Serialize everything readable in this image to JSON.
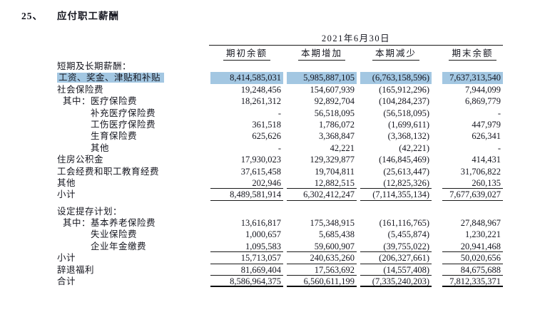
{
  "title": {
    "number": "25、",
    "text": "应付职工薪酬"
  },
  "colors": {
    "highlight": "#a3c7e2",
    "text": "#15161f",
    "rule": "#1a1a1a"
  },
  "table": {
    "date_header": "2021年6月30日",
    "columns": [
      "期初余额",
      "本期增加",
      "本期减少",
      "期末余额"
    ],
    "rows": [
      {
        "label": "短期及长期薪酬：",
        "indent": 0,
        "section": true,
        "values": [
          "",
          "",
          "",
          ""
        ]
      },
      {
        "label": "工资、奖金、津贴和补贴",
        "indent": 0,
        "highlight": true,
        "values": [
          "8,414,585,031",
          "5,985,887,105",
          "(6,763,158,596)",
          "7,637,313,540"
        ]
      },
      {
        "label": "社会保险费",
        "indent": 0,
        "values": [
          "19,248,456",
          "154,607,939",
          "(165,912,296)",
          "7,944,099"
        ]
      },
      {
        "label": "其中：医疗保险费",
        "indent": 1,
        "values": [
          "18,261,312",
          "92,892,704",
          "(104,284,237)",
          "6,869,779"
        ]
      },
      {
        "label": "补充医疗保险费",
        "indent": 2,
        "values": [
          "-",
          "56,518,095",
          "(56,518,095)",
          "-"
        ]
      },
      {
        "label": "工伤医疗保险费",
        "indent": 2,
        "values": [
          "361,518",
          "1,786,072",
          "(1,699,611)",
          "447,979"
        ]
      },
      {
        "label": "生育保险费",
        "indent": 2,
        "values": [
          "625,626",
          "3,368,847",
          "(3,368,132)",
          "626,341"
        ]
      },
      {
        "label": "其他",
        "indent": 2,
        "values": [
          "-",
          "42,221",
          "(42,221)",
          "-"
        ]
      },
      {
        "label": "住房公积金",
        "indent": 0,
        "values": [
          "17,930,023",
          "129,329,877",
          "(146,845,469)",
          "414,431"
        ]
      },
      {
        "label": "工会经费和职工教育经费",
        "indent": 0,
        "values": [
          "37,615,458",
          "19,704,811",
          "(25,613,447)",
          "31,706,822"
        ]
      },
      {
        "label": "其他",
        "indent": 0,
        "underline": true,
        "values": [
          "202,946",
          "12,882,515",
          "(12,825,326)",
          "260,135"
        ]
      },
      {
        "label": "小计",
        "indent": 0,
        "underline": true,
        "values": [
          "8,489,581,914",
          "6,302,412,247",
          "(7,114,355,134)",
          "7,677,639,027"
        ]
      },
      {
        "spacer": true
      },
      {
        "label": "设定提存计划：",
        "indent": 0,
        "section": true,
        "values": [
          "",
          "",
          "",
          ""
        ]
      },
      {
        "label": "其中：基本养老保险费",
        "indent": 1,
        "values": [
          "13,616,817",
          "175,348,915",
          "(161,116,765)",
          "27,848,967"
        ]
      },
      {
        "label": "失业保险费",
        "indent": 2,
        "values": [
          "1,000,657",
          "5,685,438",
          "(5,455,874)",
          "1,230,221"
        ]
      },
      {
        "label": "企业年金缴费",
        "indent": 2,
        "underline": true,
        "values": [
          "1,095,583",
          "59,600,907",
          "(39,755,022)",
          "20,941,468"
        ]
      },
      {
        "label": "小计",
        "indent": 0,
        "underline": true,
        "values": [
          "15,713,057",
          "240,635,260",
          "(206,327,661)",
          "50,020,656"
        ]
      },
      {
        "label": "辞退福利",
        "indent": 0,
        "underline": true,
        "values": [
          "81,669,404",
          "17,563,692",
          "(14,557,408)",
          "84,675,688"
        ]
      },
      {
        "label": "合计",
        "indent": 0,
        "underline_thick": true,
        "values": [
          "8,586,964,375",
          "6,560,611,199",
          "(7,335,240,203)",
          "7,812,335,371"
        ]
      }
    ]
  }
}
